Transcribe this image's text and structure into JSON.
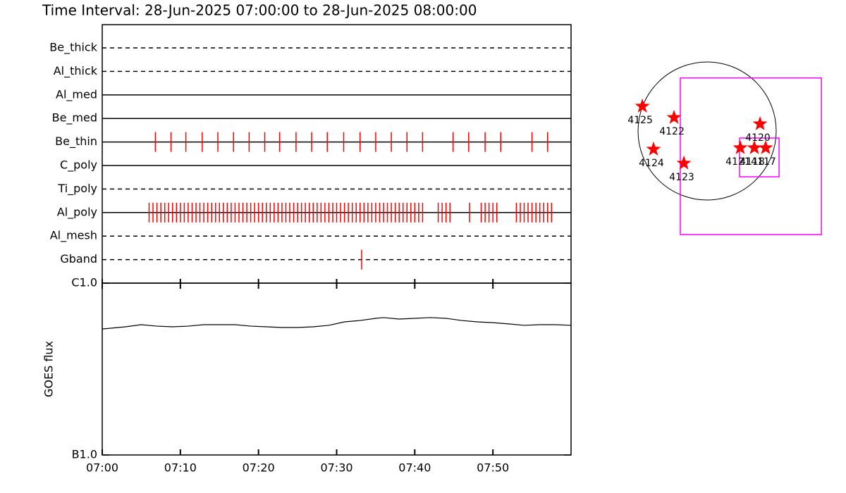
{
  "chart_data": [
    {
      "type": "timeline",
      "title": "Time Interval: 28-Jun-2025 07:00:00 to 28-Jun-2025 08:00:00",
      "categories": [
        "Be_thick",
        "Al_thick",
        "Al_med",
        "Be_med",
        "Be_thin",
        "C_poly",
        "Ti_poly",
        "Al_poly",
        "Al_mesh",
        "Gband"
      ],
      "line_styles": [
        "dashed",
        "dashed",
        "solid",
        "solid",
        "solid",
        "solid",
        "dashed",
        "solid",
        "dashed",
        "dashed"
      ],
      "xlim": [
        0,
        60
      ],
      "color": "#ff0000",
      "events": [
        [],
        [],
        [],
        [],
        [
          6.8,
          8.8,
          10.7,
          12.8,
          14.8,
          16.8,
          18.8,
          20.8,
          22.7,
          24.8,
          26.8,
          28.8,
          30.9,
          33.0,
          35.0,
          37.0,
          39.0,
          41.0,
          44.9,
          46.9,
          49.0,
          51.0,
          55.0,
          57.0
        ],
        [],
        [],
        [
          6.0,
          6.5,
          7.0,
          7.5,
          8.0,
          8.5,
          9.0,
          9.5,
          10.0,
          10.5,
          11.0,
          11.5,
          12.0,
          12.5,
          13.0,
          13.5,
          14.0,
          14.5,
          15.0,
          15.5,
          16.0,
          16.5,
          17.0,
          17.5,
          18.0,
          18.5,
          19.0,
          19.5,
          20.0,
          20.5,
          21.0,
          21.5,
          22.0,
          22.5,
          23.0,
          23.5,
          24.0,
          24.5,
          25.0,
          25.5,
          26.0,
          26.5,
          27.0,
          27.5,
          28.0,
          28.5,
          29.0,
          29.5,
          30.0,
          30.5,
          31.0,
          31.5,
          32.0,
          32.5,
          33.0,
          33.5,
          34.0,
          34.5,
          35.0,
          35.5,
          36.0,
          36.5,
          37.0,
          37.5,
          38.0,
          38.5,
          39.0,
          39.5,
          40.0,
          40.5,
          41.0,
          43.0,
          43.5,
          44.0,
          44.5,
          47.0,
          48.5,
          49.0,
          49.5,
          50.0,
          50.5,
          53.0,
          53.5,
          54.0,
          54.5,
          55.0,
          55.5,
          56.0,
          56.5,
          57.0,
          57.5
        ],
        [],
        [
          33.2
        ]
      ]
    },
    {
      "type": "line",
      "y_label": "GOES flux",
      "log_y": true,
      "xlim": [
        0,
        60
      ],
      "xticks": [
        {
          "value": 0,
          "label": "07:00"
        },
        {
          "value": 10,
          "label": "07:10"
        },
        {
          "value": 20,
          "label": "07:20"
        },
        {
          "value": 30,
          "label": "07:30"
        },
        {
          "value": 40,
          "label": "07:40"
        },
        {
          "value": 50,
          "label": "07:50"
        }
      ],
      "ylim": [
        1e-07,
        1e-06
      ],
      "yticks": [
        {
          "value": 1e-07,
          "label": "B1.0"
        },
        {
          "value": 1e-06,
          "label": "C1.0"
        }
      ],
      "color": "#000000",
      "x": [
        0,
        3,
        5,
        7,
        9,
        11,
        13,
        15,
        17,
        19,
        21,
        23,
        25,
        27,
        29,
        31,
        33,
        35,
        36,
        38,
        40,
        42,
        44,
        46,
        48,
        50,
        52,
        54,
        56,
        58,
        60
      ],
      "values": [
        5.41e-07,
        5.57e-07,
        5.73e-07,
        5.62e-07,
        5.57e-07,
        5.62e-07,
        5.73e-07,
        5.73e-07,
        5.73e-07,
        5.62e-07,
        5.57e-07,
        5.52e-07,
        5.52e-07,
        5.57e-07,
        5.68e-07,
        5.95e-07,
        6.06e-07,
        6.24e-07,
        6.3e-07,
        6.18e-07,
        6.24e-07,
        6.3e-07,
        6.24e-07,
        6.06e-07,
        5.95e-07,
        5.89e-07,
        5.79e-07,
        5.68e-07,
        5.73e-07,
        5.73e-07,
        5.68e-07
      ]
    },
    {
      "type": "map",
      "radius": 960,
      "color": "#ff0000",
      "fov_color": "#ff00ff",
      "labels": [
        "4125",
        "4122",
        "4124",
        "4123",
        "4120",
        "4121",
        "4118",
        "4117"
      ],
      "x": [
        -900,
        -460,
        -745,
        -323,
        735,
        460,
        656,
        813
      ],
      "y": [
        343,
        186,
        -255,
        -450,
        98,
        -235,
        -235,
        -235
      ],
      "fov": [
        {
          "x": [
            -372,
            1588
          ],
          "y": [
            -1441,
            738
          ]
        },
        {
          "x": [
            451,
            1000
          ],
          "y": [
            -637,
            -98
          ]
        }
      ]
    }
  ]
}
